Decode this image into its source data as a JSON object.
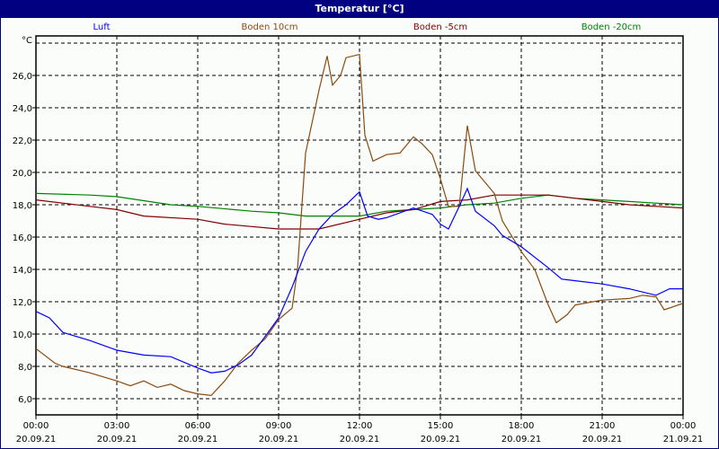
{
  "title": "Temperatur [°C]",
  "chart_data": {
    "type": "line",
    "title": "Temperatur [°C]",
    "ylabel": "°C",
    "xlabel": "",
    "ylim": [
      5,
      28.8
    ],
    "xlim_hours": [
      0,
      24
    ],
    "grid": true,
    "legend_position": "top",
    "y_ticks": [
      "6,0",
      "8,0",
      "10,0",
      "12,0",
      "14,0",
      "16,0",
      "18,0",
      "20,0",
      "22,0",
      "24,0",
      "26,0"
    ],
    "x_ticks": [
      {
        "time": "00:00",
        "date": "20.09.21"
      },
      {
        "time": "03:00",
        "date": "20.09.21"
      },
      {
        "time": "06:00",
        "date": "20.09.21"
      },
      {
        "time": "09:00",
        "date": "20.09.21"
      },
      {
        "time": "12:00",
        "date": "20.09.21"
      },
      {
        "time": "15:00",
        "date": "20.09.21"
      },
      {
        "time": "18:00",
        "date": "20.09.21"
      },
      {
        "time": "21:00",
        "date": "20.09.21"
      },
      {
        "time": "00:00",
        "date": "21.09.21"
      }
    ],
    "series": [
      {
        "name": "Luft",
        "color": "#0000ff",
        "x": [
          0,
          0.5,
          1,
          2,
          3,
          4,
          5,
          6,
          6.5,
          7,
          7.5,
          8,
          9,
          9.5,
          10,
          10.5,
          11,
          11.5,
          12,
          12.3,
          12.7,
          13,
          14,
          14.7,
          15,
          15.3,
          15.7,
          16,
          16.3,
          17,
          17.3,
          18,
          19,
          19.5,
          20,
          21,
          22,
          23,
          23.5,
          24
        ],
        "y": [
          11.4,
          11.0,
          10.1,
          9.6,
          9.0,
          8.7,
          8.6,
          7.9,
          7.6,
          7.7,
          8.1,
          8.7,
          11.0,
          12.9,
          15.1,
          16.5,
          17.4,
          18.0,
          18.8,
          17.3,
          17.1,
          17.2,
          17.8,
          17.4,
          16.8,
          16.5,
          17.9,
          19.0,
          17.6,
          16.7,
          16.1,
          15.4,
          14.1,
          13.4,
          13.3,
          13.1,
          12.8,
          12.4,
          12.8,
          12.8
        ]
      },
      {
        "name": "Boden 10cm",
        "color": "#8b4a0f",
        "x": [
          0,
          0.7,
          1,
          2,
          3,
          3.5,
          4,
          4.5,
          5,
          5.5,
          6,
          6.5,
          7,
          7.5,
          8,
          8.5,
          9,
          9.5,
          9.7,
          10,
          10.5,
          10.8,
          11,
          11.3,
          11.5,
          12,
          12.2,
          12.5,
          13,
          13.5,
          14,
          14.3,
          14.7,
          15,
          15.3,
          15.7,
          16,
          16.3,
          16.7,
          17,
          17.3,
          18,
          18.5,
          19,
          19.3,
          19.7,
          20,
          21,
          22,
          22.5,
          23,
          23.3,
          24
        ],
        "y": [
          9.1,
          8.2,
          8.0,
          7.6,
          7.1,
          6.8,
          7.1,
          6.7,
          6.9,
          6.5,
          6.3,
          6.2,
          7.1,
          8.2,
          9.0,
          9.7,
          10.9,
          11.6,
          14.0,
          21.2,
          25.1,
          27.2,
          25.4,
          26.0,
          27.1,
          27.3,
          22.3,
          20.7,
          21.1,
          21.2,
          22.2,
          21.8,
          21.1,
          19.6,
          17.9,
          17.9,
          22.9,
          20.1,
          19.3,
          18.7,
          17.0,
          15.1,
          14.0,
          11.8,
          10.7,
          11.2,
          11.8,
          12.1,
          12.2,
          12.4,
          12.3,
          11.5,
          11.9
        ]
      },
      {
        "name": "Boden -5cm",
        "color": "#800000",
        "x": [
          0,
          2,
          3,
          4,
          6,
          7,
          9,
          10.5,
          12,
          13,
          14,
          15,
          16,
          17,
          19,
          20,
          21,
          22,
          23,
          24
        ],
        "y": [
          18.3,
          17.9,
          17.7,
          17.3,
          17.1,
          16.8,
          16.5,
          16.5,
          17.1,
          17.5,
          17.7,
          18.2,
          18.3,
          18.6,
          18.6,
          18.4,
          18.2,
          18.0,
          17.9,
          17.8
        ]
      },
      {
        "name": "Boden -20cm",
        "color": "#008000",
        "x": [
          0,
          2,
          3,
          5,
          6,
          8,
          9,
          10,
          12,
          13,
          14,
          15,
          16,
          17,
          18,
          19,
          20,
          21,
          22,
          23,
          24
        ],
        "y": [
          18.7,
          18.6,
          18.5,
          18.0,
          17.9,
          17.6,
          17.5,
          17.3,
          17.3,
          17.6,
          17.7,
          17.8,
          18.0,
          18.1,
          18.4,
          18.6,
          18.4,
          18.3,
          18.2,
          18.1,
          18.0
        ]
      }
    ]
  }
}
